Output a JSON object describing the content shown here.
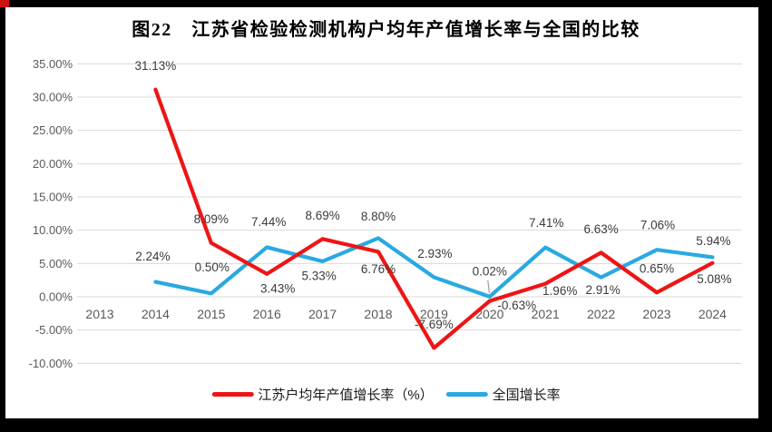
{
  "title": "图22　江苏省检验检测机构户均年产值增长率与全国的比较",
  "frame": {
    "border_color": "#000000",
    "corner_color": "#cc1111"
  },
  "chart_data": {
    "type": "line",
    "title": "图22　江苏省检验检测机构户均年产值增长率与全国的比较",
    "categories": [
      "2013",
      "2014",
      "2015",
      "2016",
      "2017",
      "2018",
      "2019",
      "2020",
      "2021",
      "2022",
      "2023",
      "2024"
    ],
    "y_ticks": [
      {
        "value": 35,
        "label": "35.00%"
      },
      {
        "value": 30,
        "label": "30.00%"
      },
      {
        "value": 25,
        "label": "25.00%"
      },
      {
        "value": 20,
        "label": "20.00%"
      },
      {
        "value": 15,
        "label": "15.00%"
      },
      {
        "value": 10,
        "label": "10.00%"
      },
      {
        "value": 5,
        "label": "5.00%"
      },
      {
        "value": 0,
        "label": "0.00%"
      },
      {
        "value": -5,
        "label": "-5.00%"
      },
      {
        "value": -10,
        "label": "-10.00%"
      }
    ],
    "ylim": [
      -10,
      35
    ],
    "grid": true,
    "legend_position": "bottom",
    "grid_color": "#d9d9d9",
    "axis_text_color": "#595959",
    "label_text_color": "#3b3b3b",
    "leader_color": "#9e9e9e",
    "series": [
      {
        "name": "江苏户均年产值增长率（%）",
        "color": "#ee1515",
        "points": [
          {
            "year": "2014",
            "value": 31.13,
            "label": "31.13%",
            "dy": -26
          },
          {
            "year": "2015",
            "value": 8.09,
            "label": "8.09%",
            "dy": -26
          },
          {
            "year": "2016",
            "value": 3.43,
            "label": "3.43%",
            "dx": 12,
            "dy": 16
          },
          {
            "year": "2017",
            "value": 8.69,
            "label": "8.69%",
            "dy": -26
          },
          {
            "year": "2018",
            "value": 6.76,
            "label": "6.76%",
            "dy": 19
          },
          {
            "year": "2019",
            "value": -7.69,
            "label": "-7.69%",
            "dy": -26
          },
          {
            "year": "2020",
            "value": -0.63,
            "label": "-0.63%",
            "dx": 30,
            "dy": 5
          },
          {
            "year": "2021",
            "value": 1.96,
            "label": "1.96%",
            "dx": 16,
            "dy": 8
          },
          {
            "year": "2022",
            "value": 6.63,
            "label": "6.63%",
            "dy": -26
          },
          {
            "year": "2023",
            "value": 0.65,
            "label": "0.65%",
            "dy": -26
          },
          {
            "year": "2024",
            "value": 5.08,
            "label": "5.08%",
            "dx": 2,
            "dy": 18
          }
        ]
      },
      {
        "name": "全国增长率",
        "color": "#29a9e1",
        "points": [
          {
            "year": "2014",
            "value": 2.24,
            "label": "2.24%",
            "dx": -3,
            "dy": -28
          },
          {
            "year": "2015",
            "value": 0.5,
            "label": "0.50%",
            "dx": 1,
            "dy": -29
          },
          {
            "year": "2016",
            "value": 7.44,
            "label": "7.44%",
            "dx": 2,
            "dy": -28
          },
          {
            "year": "2017",
            "value": 5.33,
            "label": "5.33%",
            "dx": -4,
            "dy": 16
          },
          {
            "year": "2018",
            "value": 8.8,
            "label": "8.80%",
            "dy": -24
          },
          {
            "year": "2019",
            "value": 2.93,
            "label": "2.93%",
            "dx": 1,
            "dy": -26
          },
          {
            "year": "2020",
            "value": 0.02,
            "label": "0.02%",
            "dy": -28,
            "leader": true
          },
          {
            "year": "2021",
            "value": 7.41,
            "label": "7.41%",
            "dx": 1,
            "dy": -27
          },
          {
            "year": "2022",
            "value": 2.91,
            "label": "2.91%",
            "dx": 2,
            "dy": 14
          },
          {
            "year": "2023",
            "value": 7.06,
            "label": "7.06%",
            "dx": 1,
            "dy": -27
          },
          {
            "year": "2024",
            "value": 5.94,
            "label": "5.94%",
            "dx": 1,
            "dy": -18
          }
        ]
      }
    ]
  }
}
